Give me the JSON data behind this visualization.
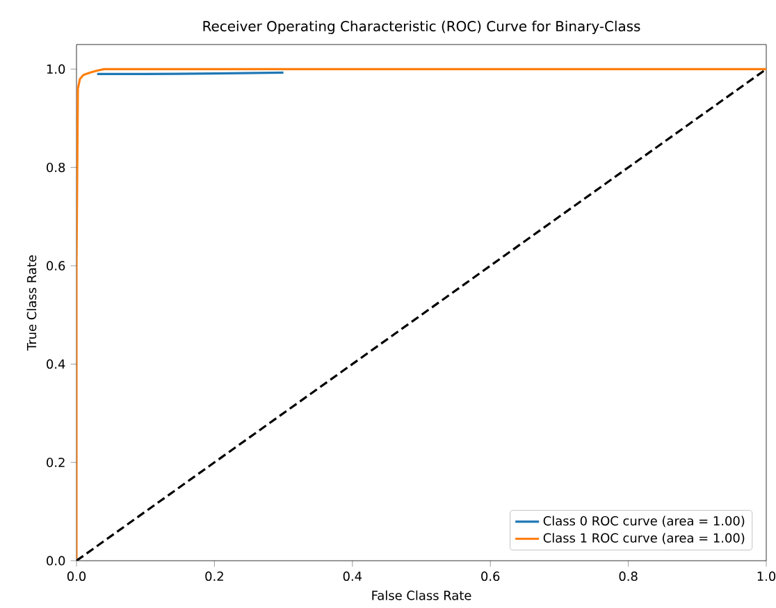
{
  "chart_data": {
    "type": "line",
    "title": "Receiver Operating Characteristic (ROC) Curve for Binary-Class",
    "xlabel": "False Class Rate",
    "ylabel": "True Class Rate",
    "xlim": [
      0,
      1
    ],
    "ylim": [
      0,
      1.05
    ],
    "xticks": [
      {
        "value": 0,
        "label": "0.0"
      },
      {
        "value": 0.2,
        "label": "0.2"
      },
      {
        "value": 0.4,
        "label": "0.4"
      },
      {
        "value": 0.6,
        "label": "0.6"
      },
      {
        "value": 0.8,
        "label": "0.8"
      },
      {
        "value": 1,
        "label": "1.0"
      }
    ],
    "yticks": [
      {
        "value": 0,
        "label": "0.0"
      },
      {
        "value": 0.2,
        "label": "0.2"
      },
      {
        "value": 0.4,
        "label": "0.4"
      },
      {
        "value": 0.6,
        "label": "0.6"
      },
      {
        "value": 0.8,
        "label": "0.8"
      },
      {
        "value": 1,
        "label": "1.0"
      }
    ],
    "legend": "bottom right",
    "grid": false,
    "series": [
      {
        "name": "Class 0 ROC curve (area = 1.00)",
        "color": "#1f77b4",
        "x": [
          0.03,
          0.1,
          0.2,
          0.3
        ],
        "values": [
          0.99,
          0.99,
          0.991,
          0.993
        ]
      },
      {
        "name": "Class 1 ROC curve (area = 1.00)",
        "color": "#ff7f0e",
        "x": [
          0,
          0,
          0.002,
          0.005,
          0.01,
          0.02,
          0.03,
          0.04,
          0.1,
          0.4,
          1
        ],
        "values": [
          0,
          0.6,
          0.96,
          0.98,
          0.988,
          0.993,
          0.997,
          1,
          1,
          1,
          1
        ]
      },
      {
        "color": "#000000",
        "line_style": "dashed",
        "x": [
          0,
          1
        ],
        "values": [
          0,
          1
        ]
      }
    ]
  }
}
